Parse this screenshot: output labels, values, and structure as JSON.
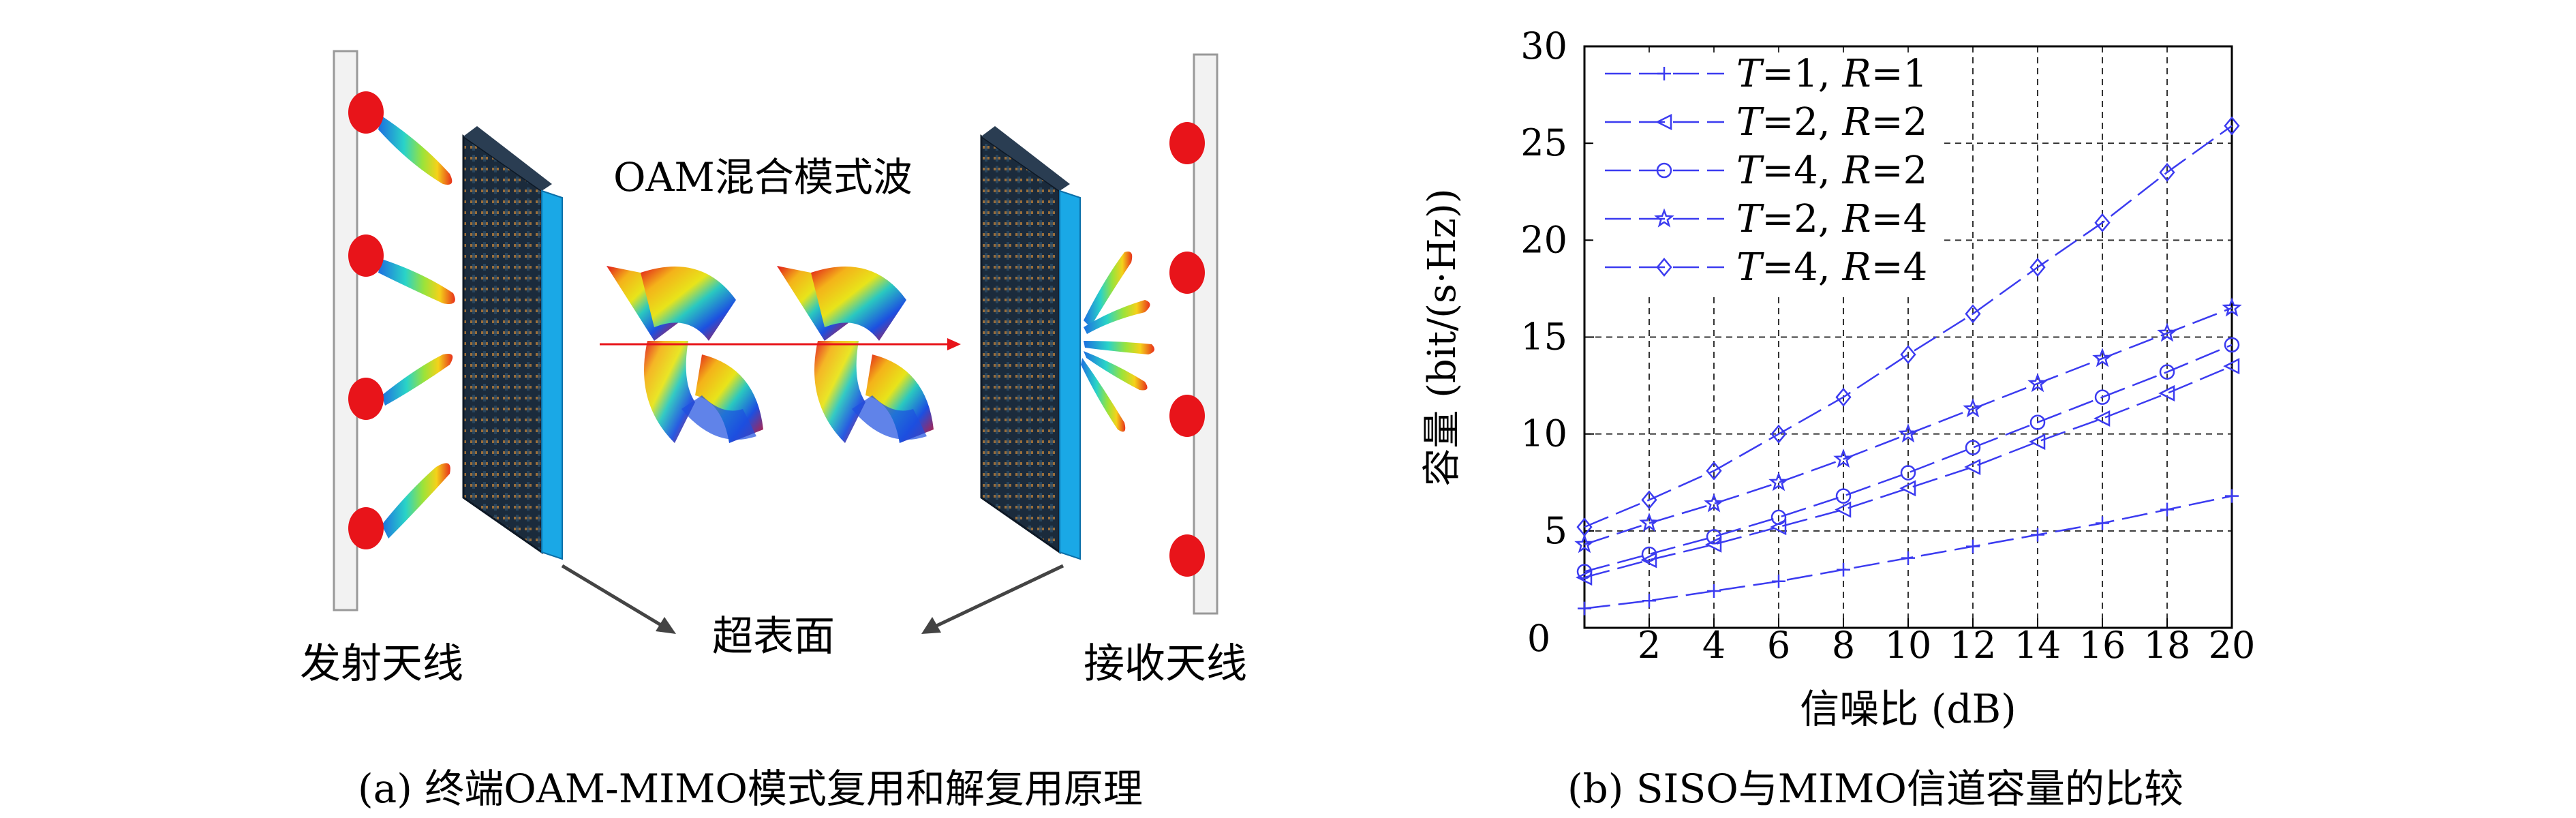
{
  "panel_a": {
    "tx_label": "发射天线",
    "rx_label": "接收天线",
    "surface_label": "超表面",
    "wave_label": "OAM混合模式波",
    "caption": "(a) 终端OAM-MIMO模式复用和解复用原理"
  },
  "panel_b": {
    "caption": "(b) SISO与MIMO信道容量的比较"
  },
  "colors": {
    "series": "#3b3bf0",
    "grid": "#333333",
    "antenna_red": "#e8141a",
    "panel_blue": "#1aa8e6",
    "panel_dark": "#1b2b3c"
  },
  "chart_data": {
    "type": "line",
    "xlabel": "信噪比 (dB)",
    "ylabel": "容量 (bit/(s·Hz))",
    "xlim": [
      0,
      20
    ],
    "ylim": [
      0,
      30
    ],
    "xticks": [
      0,
      2,
      4,
      6,
      8,
      10,
      12,
      14,
      16,
      18,
      20
    ],
    "yticks": [
      5,
      10,
      15,
      20,
      25,
      30
    ],
    "grid": true,
    "legend_position": "top-left",
    "x": [
      0,
      2,
      4,
      6,
      8,
      10,
      12,
      14,
      16,
      18,
      20
    ],
    "series": [
      {
        "name": "T=1, R=1",
        "tvar": "T",
        "tval": "=1, ",
        "rvar": "R",
        "rval": "=1",
        "marker": "plus",
        "values": [
          1.0,
          1.4,
          1.9,
          2.4,
          3.0,
          3.6,
          4.2,
          4.8,
          5.4,
          6.1,
          6.8
        ]
      },
      {
        "name": "T=2, R=2",
        "tvar": "T",
        "tval": "=2, ",
        "rvar": "R",
        "rval": "=2",
        "marker": "triangle",
        "values": [
          2.6,
          3.5,
          4.3,
          5.2,
          6.1,
          7.2,
          8.3,
          9.6,
          10.8,
          12.1,
          13.5
        ]
      },
      {
        "name": "T=4, R=2",
        "tvar": "T",
        "tval": "=4, ",
        "rvar": "R",
        "rval": "=2",
        "marker": "circle",
        "values": [
          2.9,
          3.8,
          4.7,
          5.7,
          6.8,
          8.0,
          9.3,
          10.6,
          11.9,
          13.2,
          14.6
        ]
      },
      {
        "name": "T=2, R=4",
        "tvar": "T",
        "tval": "=2, ",
        "rvar": "R",
        "rval": "=4",
        "marker": "star",
        "values": [
          4.3,
          5.4,
          6.4,
          7.5,
          8.7,
          10.0,
          11.3,
          12.6,
          13.9,
          15.2,
          16.5
        ]
      },
      {
        "name": "T=4, R=4",
        "tvar": "T",
        "tval": "=4, ",
        "rvar": "R",
        "rval": "=4",
        "marker": "diamond",
        "values": [
          5.2,
          6.6,
          8.1,
          10.0,
          11.9,
          14.1,
          16.2,
          18.6,
          20.9,
          23.5,
          25.9
        ]
      }
    ]
  }
}
